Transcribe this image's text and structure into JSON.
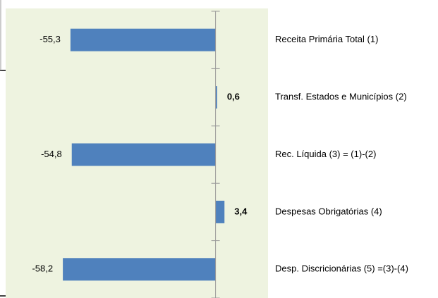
{
  "chart_data": {
    "type": "barh",
    "categories": [
      "Receita Primária Total (1)",
      "Transf. Estados e Municípios (2)",
      "Rec. Líquida (3) = (1)-(2)",
      "Despesas Obrigatórias (4)",
      "Desp. Discricionárias (5) =(3)-(4)"
    ],
    "values": [
      -55.3,
      0.6,
      -54.8,
      3.4,
      -58.2
    ],
    "value_labels": [
      "-55,3",
      "0,6",
      "-54,8",
      "3,4",
      "-58,2"
    ],
    "color": "#4f81bd",
    "xlim": [
      -80,
      20
    ]
  }
}
